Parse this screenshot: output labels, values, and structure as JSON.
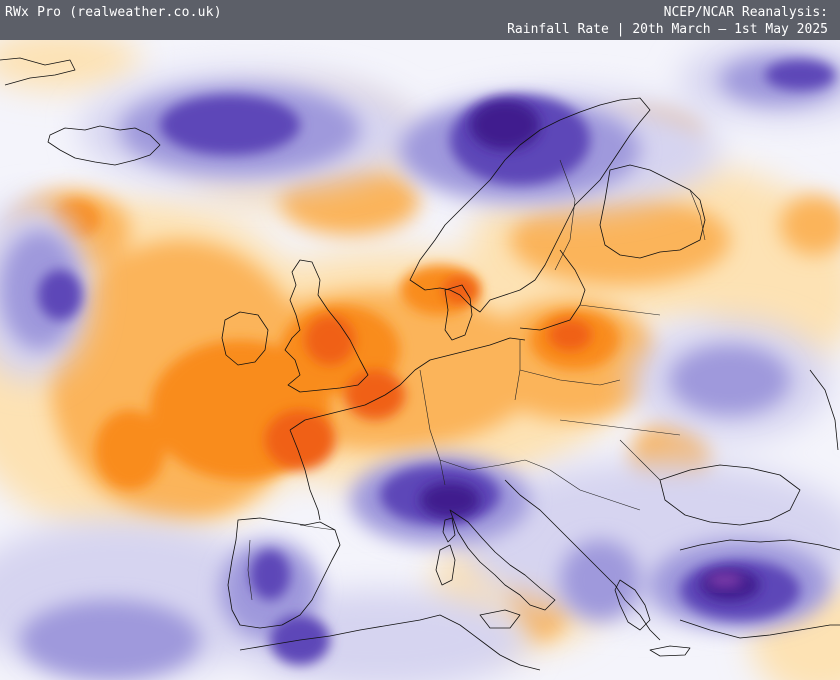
{
  "header": {
    "brand": "RWx Pro (realweather.co.uk)",
    "title_line1": "NCEP/NCAR Reanalysis:",
    "title_line2": "Rainfall Rate | 20th March — 1st May 2025"
  },
  "map": {
    "region": "Europe",
    "field": "Rainfall Rate anomaly",
    "colors": {
      "background": "#f4f4fb",
      "dry_light": "#fde2b4",
      "dry_mid": "#fbb45a",
      "dry_strong": "#f98c1c",
      "dry_peak": "#f06012",
      "wet_light": "#d6d4f0",
      "wet_mid": "#9f99dc",
      "wet_strong": "#5d47b8",
      "wet_peak": "#3f1a8e",
      "wet_extreme": "#7a3aa8",
      "coastline": "#111111",
      "header_bg": "#5c5f68",
      "header_text": "#ffffff"
    }
  }
}
